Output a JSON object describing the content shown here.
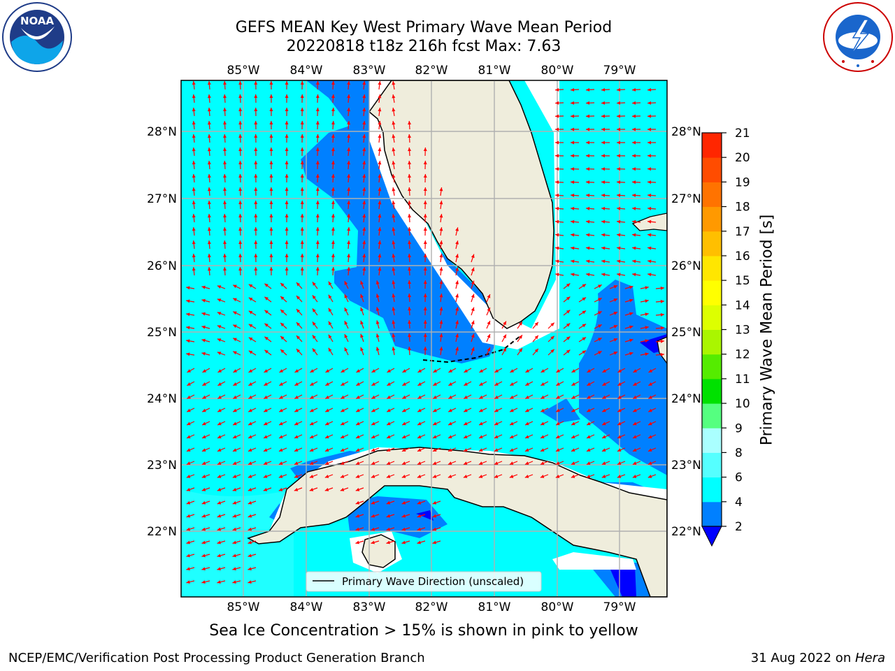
{
  "header": {
    "title_line1": "GEFS MEAN Key West Primary Wave Mean Period",
    "title_line2": "20220818 t18z 216h fcst   Max: 7.63"
  },
  "map": {
    "lon_ticks": [
      "85°W",
      "84°W",
      "83°W",
      "82°W",
      "81°W",
      "80°W",
      "79°W"
    ],
    "lat_ticks": [
      "28°N",
      "27°N",
      "26°N",
      "25°N",
      "24°N",
      "23°N",
      "22°N"
    ],
    "legend_label": "Primary Wave Direction (unscaled)",
    "ocean_color": "#00ffff",
    "low_period_color": "#0080ff",
    "land_color": "#efeddc",
    "arrow_color": "#ff0000"
  },
  "colorbar": {
    "label": "Primary Wave Mean Period [s]",
    "ticks": [
      "2",
      "4",
      "6",
      "8",
      "9",
      "10",
      "11",
      "12",
      "13",
      "14",
      "15",
      "16",
      "17",
      "18",
      "19",
      "20",
      "21"
    ],
    "colors": [
      "#0080ff",
      "#00ffff",
      "#55ffff",
      "#aaffff",
      "#55ff80",
      "#00e100",
      "#55ec00",
      "#aaf600",
      "#ddff00",
      "#ffff00",
      "#ffe600",
      "#ffbf00",
      "#ff9900",
      "#ff7300",
      "#ff4c00",
      "#ff2600",
      "#ff0000"
    ],
    "under_color": "#0000ff"
  },
  "notes": {
    "sea_ice": "Sea Ice Concentration > 15% is shown in pink to yellow"
  },
  "footer": {
    "credit": "NCEP/EMC/Verification Post Processing Product Generation Branch",
    "date": "31 Aug 2022 on ",
    "machine": "Hera"
  },
  "logos": {
    "noaa_text": "NOAA",
    "nws_text": "NATIONAL WEATHER SERVICE"
  }
}
